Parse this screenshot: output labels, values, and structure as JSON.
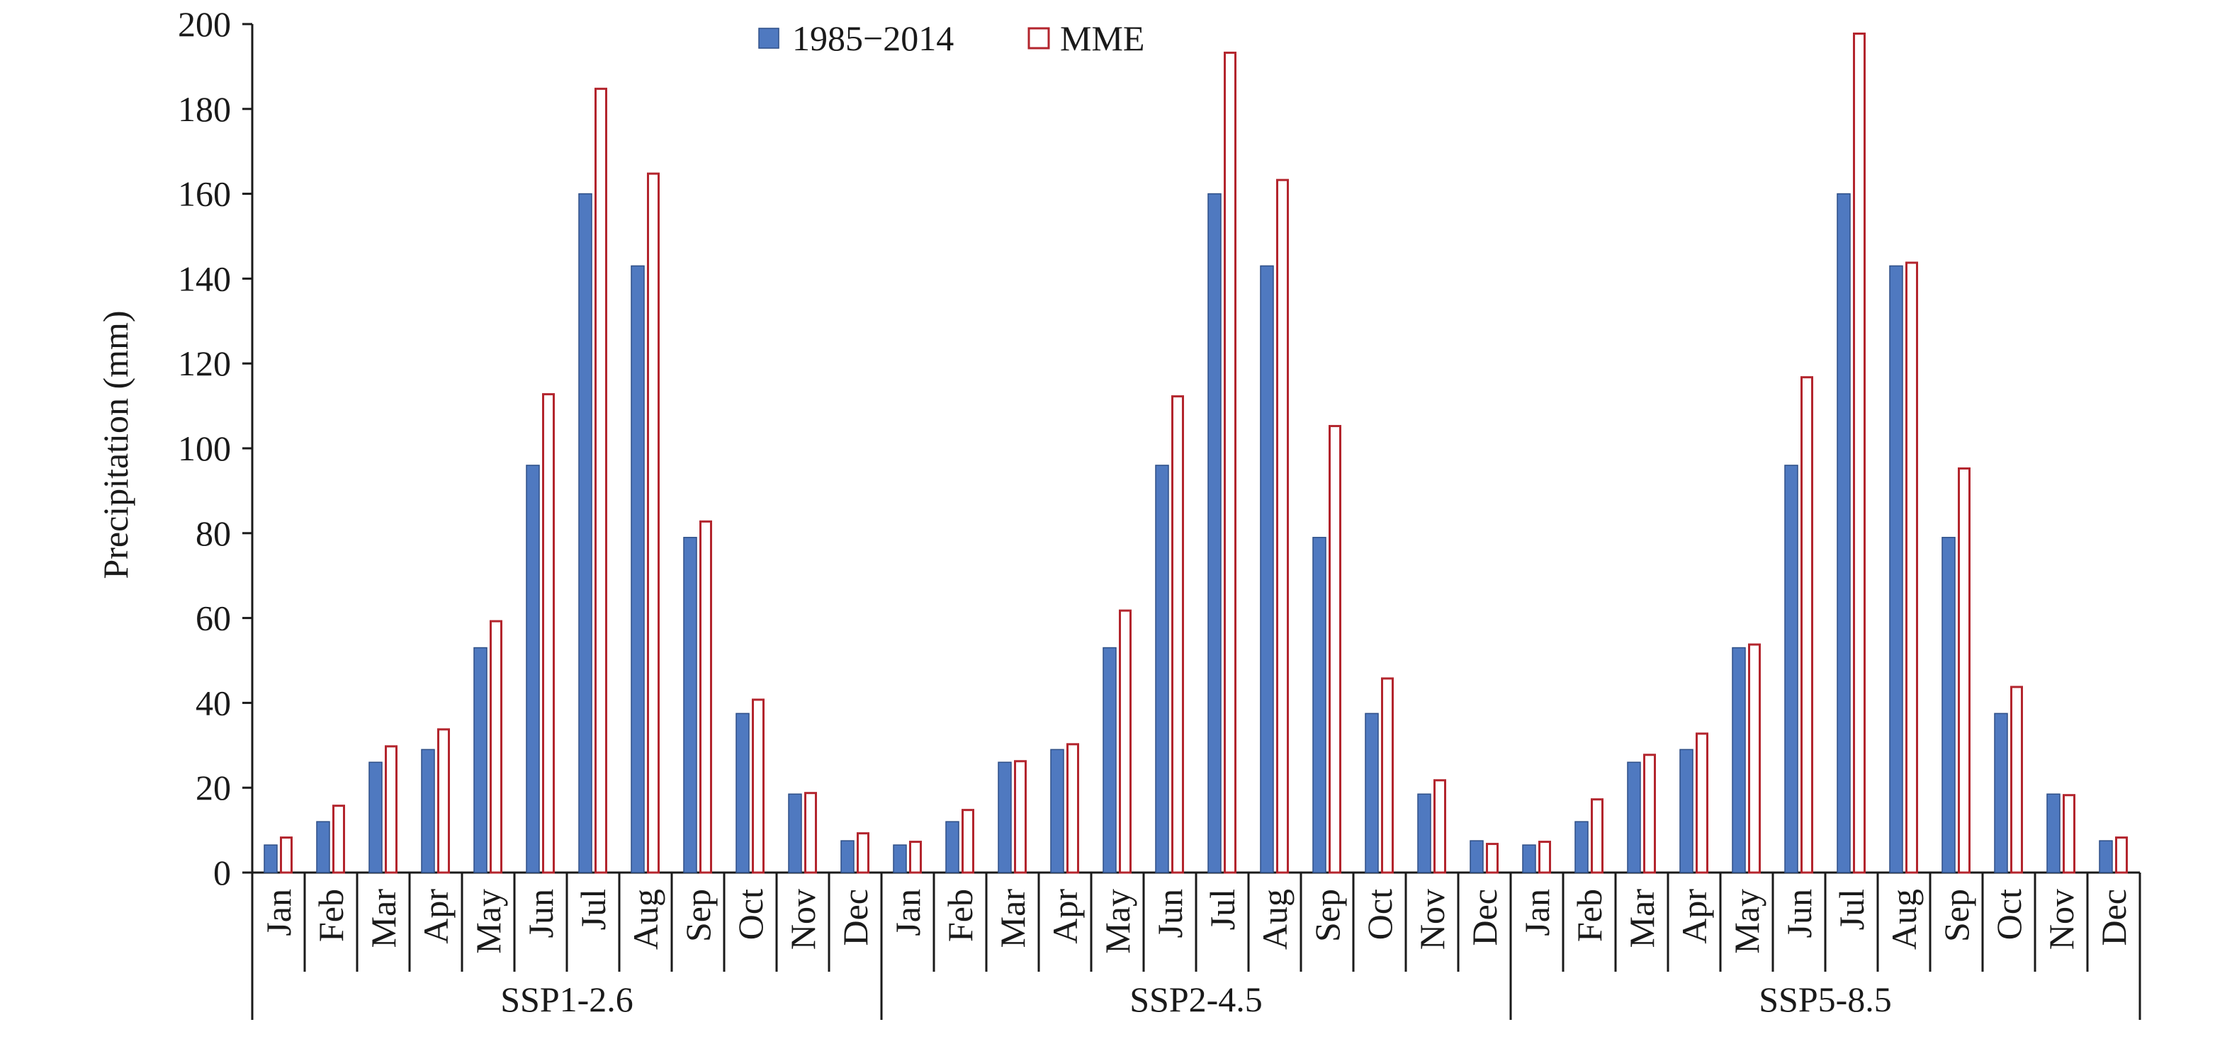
{
  "chart_data": {
    "type": "bar",
    "ylabel": "Precipitation (mm)",
    "xlabel": "",
    "ylim": [
      0,
      200
    ],
    "yticks": [
      0,
      20,
      40,
      60,
      80,
      100,
      120,
      140,
      160,
      180,
      200
    ],
    "months": [
      "Jan",
      "Feb",
      "Mar",
      "Apr",
      "May",
      "Jun",
      "Jul",
      "Aug",
      "Sep",
      "Oct",
      "Nov",
      "Dec"
    ],
    "groups": [
      "SSP1-2.6",
      "SSP2-4.5",
      "SSP5-8.5"
    ],
    "legend": {
      "placement": "top-center"
    },
    "colors": {
      "baseline_fill": "#4f79c0",
      "baseline_edge": "#2e4f87",
      "mme_edge": "#b3252d",
      "mme_fill": "#ffffff"
    },
    "series": [
      {
        "name": "1985−2014",
        "style": "filled",
        "values": [
          [
            6.5,
            12,
            26,
            29,
            53,
            96,
            160,
            143,
            79,
            37.5,
            18.5,
            7.5
          ],
          [
            6.5,
            12,
            26,
            29,
            53,
            96,
            160,
            143,
            79,
            37.5,
            18.5,
            7.5
          ],
          [
            6.5,
            12,
            26,
            29,
            53,
            96,
            160,
            143,
            79,
            37.5,
            18.5,
            7.5
          ]
        ]
      },
      {
        "name": "MME",
        "style": "outline",
        "values": [
          [
            8.5,
            16,
            30,
            34,
            59.5,
            113,
            185,
            165,
            83,
            41,
            19,
            9.5
          ],
          [
            7.5,
            15,
            26.5,
            30.5,
            62,
            112.5,
            193.5,
            163.5,
            105.5,
            46,
            22,
            7
          ],
          [
            7.5,
            17.5,
            28,
            33,
            54,
            117,
            198,
            144,
            95.5,
            44,
            18.5,
            8.5
          ]
        ]
      }
    ]
  }
}
